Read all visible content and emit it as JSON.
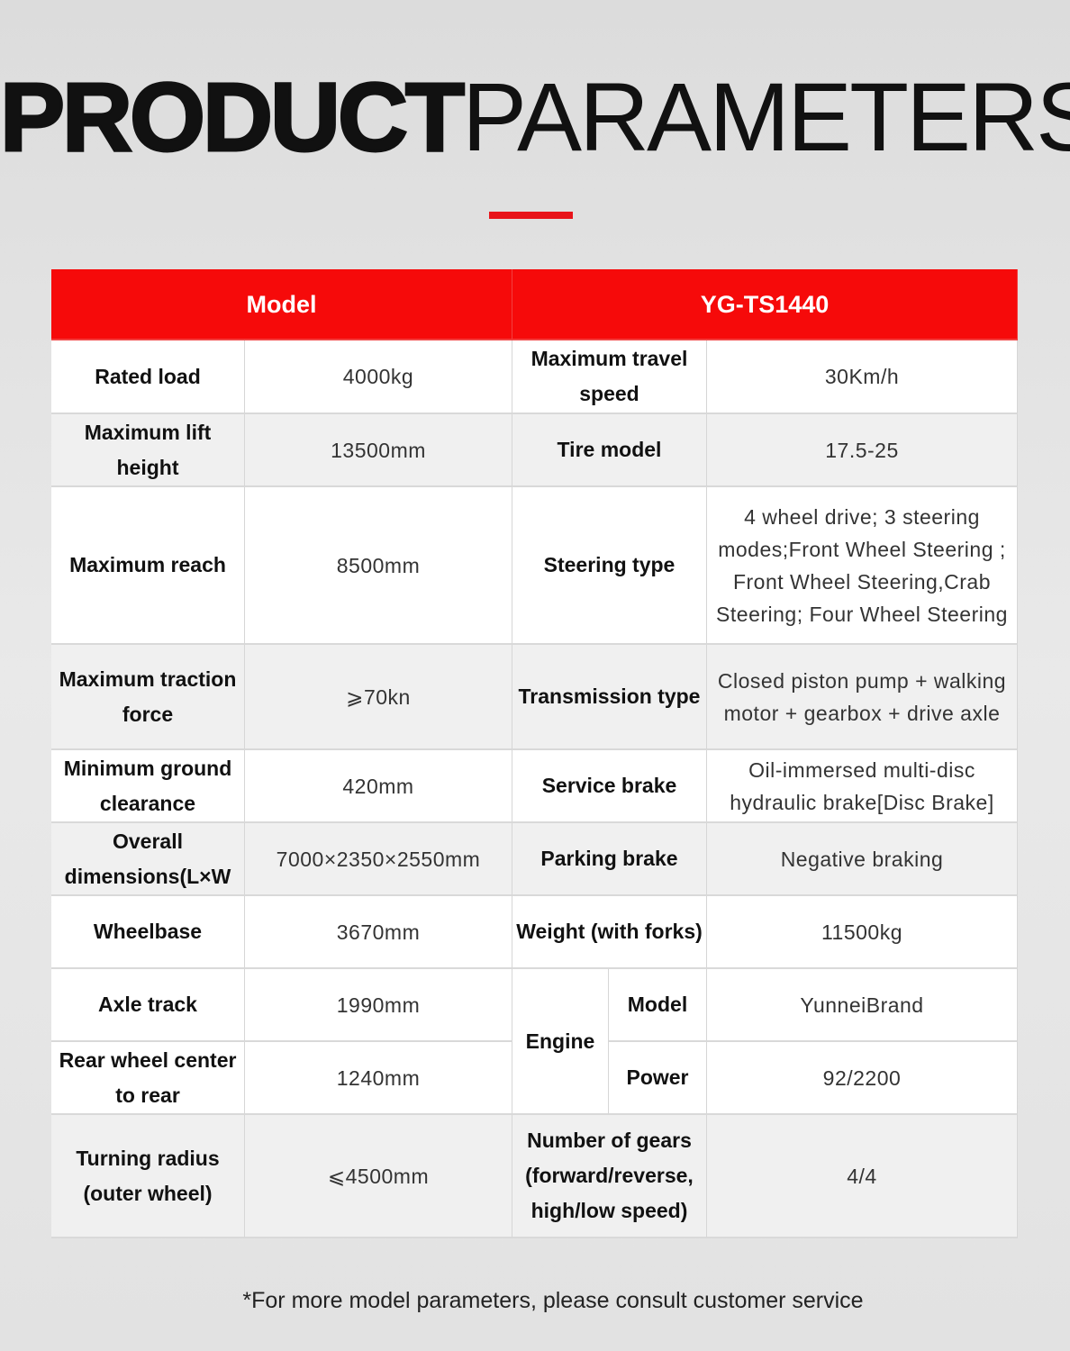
{
  "title": {
    "bold": "PRODUCT",
    "regular": "PARAMETERS"
  },
  "accent_color": "#e8141a",
  "header": {
    "left": "Model",
    "right": "YG-TS1440"
  },
  "rows": [
    {
      "label": "Rated load",
      "value": "4000kg",
      "label2": "Maximum travel speed",
      "value2": "30Km/h"
    },
    {
      "label": "Maximum lift height",
      "value": "13500mm",
      "label2": "Tire model",
      "value2": "17.5-25"
    },
    {
      "label": "Maximum reach",
      "value": "8500mm",
      "label2": "Steering type",
      "value2": "4 wheel drive; 3 steering modes;Front Wheel Steering ; Front Wheel Steering,Crab Steering; Four Wheel Steering"
    },
    {
      "label": "Maximum traction force",
      "value": "⩾70kn",
      "label2": "Transmission type",
      "value2": "Closed piston pump + walking motor + gearbox + drive axle"
    },
    {
      "label": "Minimum ground clearance",
      "value": "420mm",
      "label2": "Service brake",
      "value2": "Oil-immersed multi-disc hydraulic brake[Disc Brake]"
    },
    {
      "label": "Overall dimensions(L×W",
      "value": "7000×2350×2550mm",
      "label2": "Parking brake",
      "value2": "Negative braking"
    },
    {
      "label": "Wheelbase",
      "value": "3670mm",
      "label2": "Weight (with forks)",
      "value2": "11500kg"
    },
    {
      "label": "Axle track",
      "value": "1990mm",
      "label2": "Model",
      "value2": "YunneiBrand"
    },
    {
      "label": "Rear wheel center to rear",
      "value": "1240mm",
      "label2": "Power",
      "value2": "92/2200"
    },
    {
      "label": "Turning radius (outer wheel)",
      "value": "⩽4500mm",
      "label2": "Number of gears (forward/reverse, high/low speed)",
      "value2": "4/4"
    }
  ],
  "engine_label": "Engine",
  "footnote": "*For more model parameters, please consult customer service"
}
